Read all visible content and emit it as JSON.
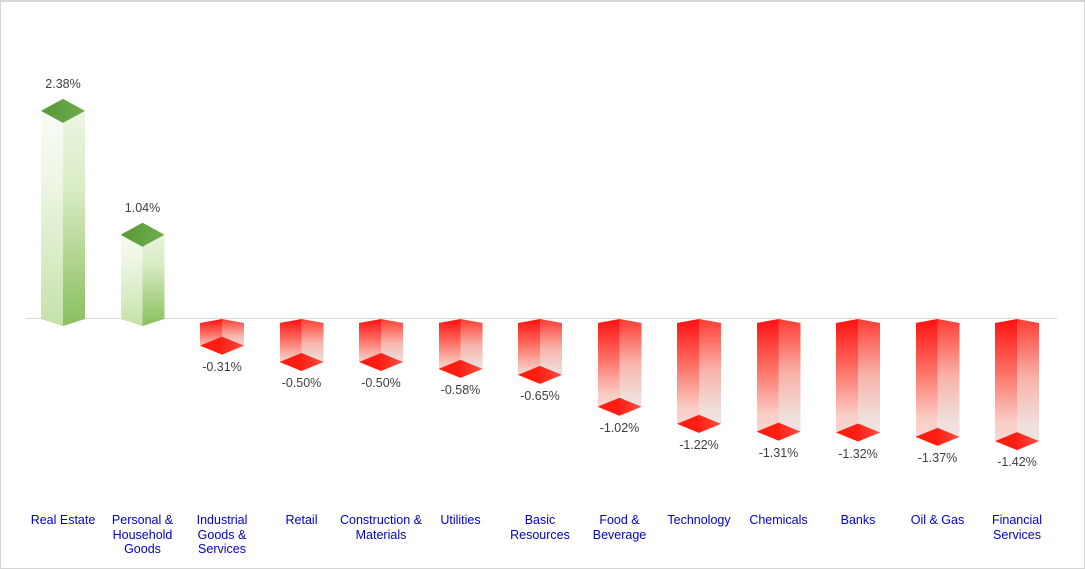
{
  "chart_data": {
    "type": "bar",
    "subtype": "3d-column",
    "title": "",
    "xlabel": "",
    "ylabel": "",
    "grid": false,
    "legend": null,
    "unit": "%",
    "ylim_estimate": [
      -1.6,
      2.6
    ],
    "categories": [
      "Real Estate",
      "Personal & Household Goods",
      "Industrial Goods & Services",
      "Retail",
      "Construction & Materials",
      "Utilities",
      "Basic Resources",
      "Food & Beverage",
      "Technology",
      "Chemicals",
      "Banks",
      "Oil & Gas",
      "Financial Services"
    ],
    "values": [
      2.38,
      1.04,
      -0.31,
      -0.5,
      -0.5,
      -0.58,
      -0.65,
      -1.02,
      -1.22,
      -1.31,
      -1.32,
      -1.37,
      -1.42
    ],
    "value_labels": [
      "2.38%",
      "1.04%",
      "-0.31%",
      "-0.50%",
      "-0.50%",
      "-0.58%",
      "-0.65%",
      "-1.02%",
      "-1.22%",
      "-1.31%",
      "-1.32%",
      "-1.37%",
      "-1.42%"
    ],
    "colors": {
      "positive_bar": "#70AD47",
      "negative_bar": "#FF2015",
      "value_label_text": "#404040",
      "category_label_text": "#0000CC",
      "axis_line": "#D9D9D9",
      "canvas_border": "#D6D6D6",
      "background": "#FFFFFF"
    }
  }
}
